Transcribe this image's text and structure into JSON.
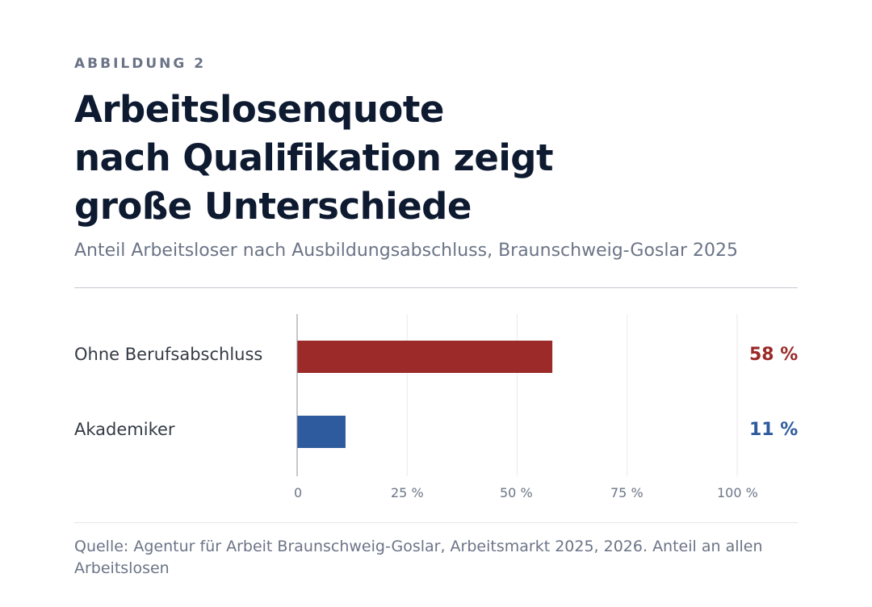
{
  "eyebrow": "ABBILDUNG 2",
  "title_lines": [
    "Arbeitslosenquote",
    "nach Qualifikation zeigt",
    "große Unterschiede"
  ],
  "subtitle": "Anteil Arbeitsloser nach Ausbildungsabschluss, Braunschweig-Goslar 2025",
  "source": "Quelle: Agentur für Arbeit Braunschweig-Goslar, Arbeitsmarkt 2025, 2026. Anteil an allen Arbeitslosen",
  "colors": {
    "series_1": "#9b2a28",
    "series_2": "#2e5b9e",
    "grid": "#e8eaee",
    "axis": "#8a919d"
  },
  "chart_data": {
    "type": "bar",
    "orientation": "horizontal",
    "categories": [
      "Ohne Berufsabschluss",
      "Akademiker"
    ],
    "values": [
      58,
      11
    ],
    "value_labels": [
      "58 %",
      "11 %"
    ],
    "value_label_colors": [
      "#9b2a28",
      "#2e5b9e"
    ],
    "bar_colors": [
      "#9b2a28",
      "#2e5b9e"
    ],
    "xlim": [
      0,
      100
    ],
    "xticks": [
      0,
      25,
      50,
      75,
      100
    ],
    "xtick_labels": [
      "0",
      "25 %",
      "50 %",
      "75 %",
      "100 %"
    ],
    "grid": true,
    "legend": false
  }
}
